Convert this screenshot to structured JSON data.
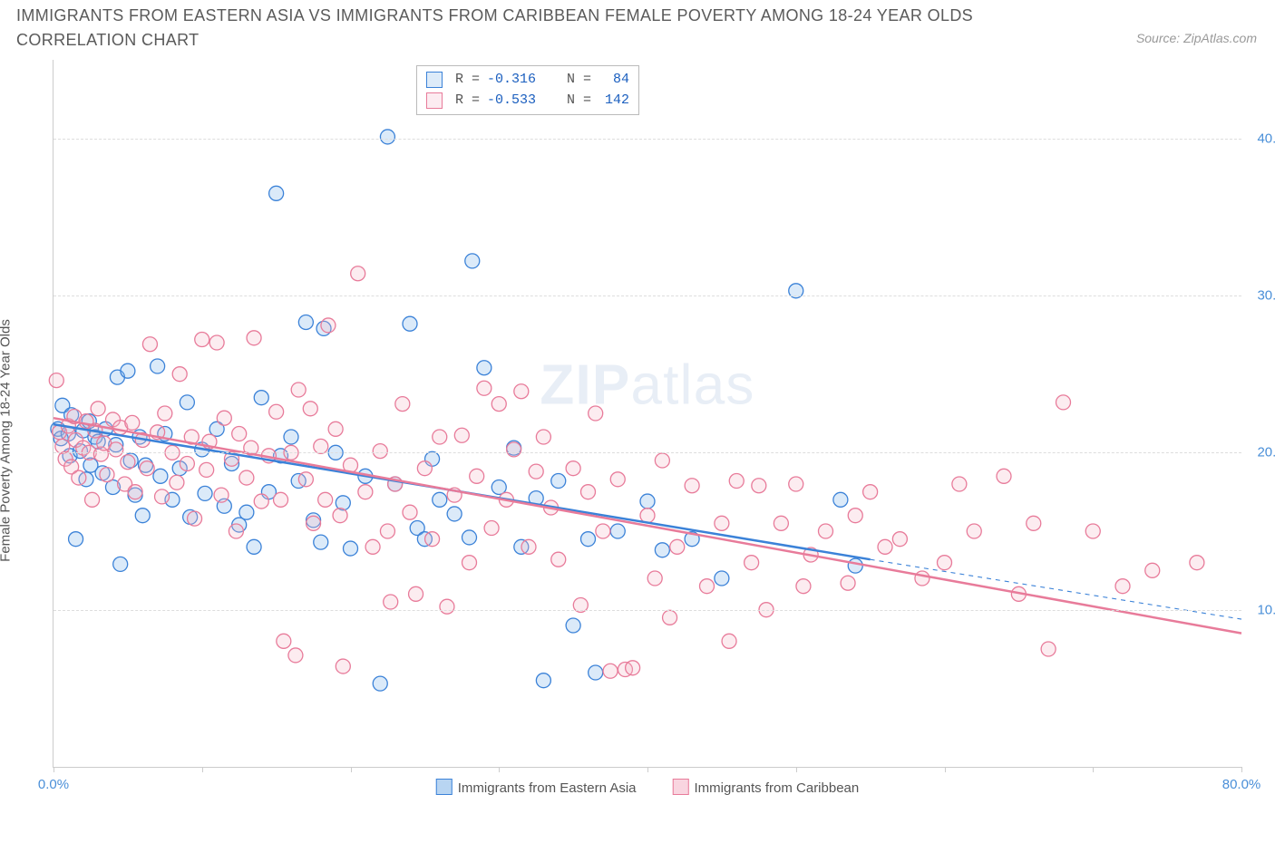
{
  "title": "IMMIGRANTS FROM EASTERN ASIA VS IMMIGRANTS FROM CARIBBEAN FEMALE POVERTY AMONG 18-24 YEAR OLDS CORRELATION CHART",
  "source": "Source: ZipAtlas.com",
  "ylabel": "Female Poverty Among 18-24 Year Olds",
  "watermark_bold": "ZIP",
  "watermark_light": "atlas",
  "chart": {
    "type": "scatter",
    "background_color": "#ffffff",
    "grid_color": "#dddddd",
    "axis_color": "#cccccc",
    "tick_label_color": "#4a8fd8",
    "xlim": [
      0,
      80
    ],
    "ylim": [
      0,
      45
    ],
    "xtick_marks": [
      0,
      10,
      20,
      30,
      40,
      50,
      60,
      70,
      80
    ],
    "xtick_labels": [
      {
        "x": 0,
        "label": "0.0%"
      },
      {
        "x": 80,
        "label": "80.0%"
      }
    ],
    "ytick_labels": [
      {
        "y": 10,
        "label": "10.0%"
      },
      {
        "y": 20,
        "label": "20.0%"
      },
      {
        "y": 30,
        "label": "30.0%"
      },
      {
        "y": 40,
        "label": "40.0%"
      }
    ],
    "marker_radius": 8,
    "marker_stroke_width": 1.3,
    "marker_fill_opacity": 0.28,
    "regression_line_width": 2.5,
    "regression_dash_width": 1.1,
    "series": [
      {
        "name": "Immigrants from Eastern Asia",
        "color_stroke": "#3b82d8",
        "color_fill": "#7fb4e8",
        "R": "-0.316",
        "N": "84",
        "regression": {
          "x1": 0,
          "y1": 21.8,
          "x2": 55,
          "y2": 13.2,
          "dash_x2": 80,
          "dash_y2": 9.4
        },
        "points": [
          [
            0.3,
            21.5
          ],
          [
            0.5,
            20.9
          ],
          [
            0.6,
            23.0
          ],
          [
            1.0,
            21.2
          ],
          [
            1.1,
            19.8
          ],
          [
            1.2,
            22.4
          ],
          [
            1.5,
            14.5
          ],
          [
            1.8,
            20.1
          ],
          [
            2.0,
            21.4
          ],
          [
            2.2,
            18.3
          ],
          [
            2.4,
            22.0
          ],
          [
            2.5,
            19.2
          ],
          [
            2.8,
            21.0
          ],
          [
            3.0,
            20.7
          ],
          [
            3.3,
            18.7
          ],
          [
            3.5,
            21.5
          ],
          [
            4.0,
            17.8
          ],
          [
            4.2,
            20.5
          ],
          [
            4.3,
            24.8
          ],
          [
            4.5,
            12.9
          ],
          [
            5.0,
            25.2
          ],
          [
            5.2,
            19.5
          ],
          [
            5.5,
            17.3
          ],
          [
            5.8,
            21.0
          ],
          [
            6.0,
            16.0
          ],
          [
            6.2,
            19.2
          ],
          [
            7.0,
            25.5
          ],
          [
            7.2,
            18.5
          ],
          [
            7.5,
            21.2
          ],
          [
            8.0,
            17.0
          ],
          [
            8.5,
            19.0
          ],
          [
            9.0,
            23.2
          ],
          [
            9.2,
            15.9
          ],
          [
            10.0,
            20.2
          ],
          [
            10.2,
            17.4
          ],
          [
            11.0,
            21.5
          ],
          [
            11.5,
            16.6
          ],
          [
            12.0,
            19.3
          ],
          [
            12.5,
            15.4
          ],
          [
            13.0,
            16.2
          ],
          [
            13.5,
            14.0
          ],
          [
            14.0,
            23.5
          ],
          [
            14.5,
            17.5
          ],
          [
            15.0,
            36.5
          ],
          [
            15.3,
            19.8
          ],
          [
            16.0,
            21.0
          ],
          [
            16.5,
            18.2
          ],
          [
            17.0,
            28.3
          ],
          [
            17.5,
            15.7
          ],
          [
            18.0,
            14.3
          ],
          [
            18.2,
            27.9
          ],
          [
            19.0,
            20.0
          ],
          [
            19.5,
            16.8
          ],
          [
            20.0,
            13.9
          ],
          [
            21.0,
            18.5
          ],
          [
            22.0,
            5.3
          ],
          [
            22.5,
            40.1
          ],
          [
            23.0,
            18.0
          ],
          [
            24.0,
            28.2
          ],
          [
            24.5,
            15.2
          ],
          [
            25.0,
            14.5
          ],
          [
            25.5,
            19.6
          ],
          [
            26.0,
            17.0
          ],
          [
            27.0,
            16.1
          ],
          [
            28.0,
            14.6
          ],
          [
            28.2,
            32.2
          ],
          [
            29.0,
            25.4
          ],
          [
            30.0,
            17.8
          ],
          [
            31.0,
            20.3
          ],
          [
            31.5,
            14.0
          ],
          [
            32.5,
            17.1
          ],
          [
            33.0,
            5.5
          ],
          [
            34.0,
            18.2
          ],
          [
            35.0,
            9.0
          ],
          [
            36.0,
            14.5
          ],
          [
            36.5,
            6.0
          ],
          [
            38.0,
            15.0
          ],
          [
            40.0,
            16.9
          ],
          [
            41.0,
            13.8
          ],
          [
            43.0,
            14.5
          ],
          [
            45.0,
            12.0
          ],
          [
            50.0,
            30.3
          ],
          [
            53.0,
            17.0
          ],
          [
            54.0,
            12.8
          ]
        ]
      },
      {
        "name": "Immigrants from Caribbean",
        "color_stroke": "#e87b9a",
        "color_fill": "#f5b9c9",
        "R": "-0.533",
        "N": "142",
        "regression": {
          "x1": 0,
          "y1": 22.2,
          "x2": 80,
          "y2": 8.5,
          "dash_x2": 80,
          "dash_y2": 8.5
        },
        "points": [
          [
            0.2,
            24.6
          ],
          [
            0.4,
            21.3
          ],
          [
            0.6,
            20.4
          ],
          [
            0.8,
            19.6
          ],
          [
            1.0,
            21.7
          ],
          [
            1.2,
            19.1
          ],
          [
            1.4,
            22.3
          ],
          [
            1.5,
            20.8
          ],
          [
            1.7,
            18.4
          ],
          [
            2.0,
            20.3
          ],
          [
            2.2,
            22.0
          ],
          [
            2.4,
            20.0
          ],
          [
            2.6,
            17.0
          ],
          [
            2.8,
            21.4
          ],
          [
            3.0,
            22.8
          ],
          [
            3.2,
            19.9
          ],
          [
            3.4,
            20.6
          ],
          [
            3.6,
            18.6
          ],
          [
            4.0,
            22.1
          ],
          [
            4.2,
            20.2
          ],
          [
            4.5,
            21.6
          ],
          [
            4.8,
            18.0
          ],
          [
            5.0,
            19.4
          ],
          [
            5.3,
            21.9
          ],
          [
            5.5,
            17.5
          ],
          [
            6.0,
            20.8
          ],
          [
            6.3,
            19.0
          ],
          [
            6.5,
            26.9
          ],
          [
            7.0,
            21.3
          ],
          [
            7.3,
            17.2
          ],
          [
            7.5,
            22.5
          ],
          [
            8.0,
            20.0
          ],
          [
            8.3,
            18.1
          ],
          [
            8.5,
            25.0
          ],
          [
            9.0,
            19.3
          ],
          [
            9.3,
            21.0
          ],
          [
            9.5,
            15.8
          ],
          [
            10.0,
            27.2
          ],
          [
            10.3,
            18.9
          ],
          [
            10.5,
            20.7
          ],
          [
            11.0,
            27.0
          ],
          [
            11.3,
            17.3
          ],
          [
            11.5,
            22.2
          ],
          [
            12.0,
            19.6
          ],
          [
            12.3,
            15.0
          ],
          [
            12.5,
            21.2
          ],
          [
            13.0,
            18.4
          ],
          [
            13.3,
            20.3
          ],
          [
            13.5,
            27.3
          ],
          [
            14.0,
            16.9
          ],
          [
            14.5,
            19.8
          ],
          [
            15.0,
            22.6
          ],
          [
            15.3,
            17.0
          ],
          [
            15.5,
            8.0
          ],
          [
            16.0,
            20.0
          ],
          [
            16.3,
            7.1
          ],
          [
            16.5,
            24.0
          ],
          [
            17.0,
            18.3
          ],
          [
            17.3,
            22.8
          ],
          [
            17.5,
            15.5
          ],
          [
            18.0,
            20.4
          ],
          [
            18.3,
            17.0
          ],
          [
            18.5,
            28.1
          ],
          [
            19.0,
            21.5
          ],
          [
            19.3,
            16.0
          ],
          [
            19.5,
            6.4
          ],
          [
            20.0,
            19.2
          ],
          [
            20.5,
            31.4
          ],
          [
            21.0,
            17.5
          ],
          [
            21.5,
            14.0
          ],
          [
            22.0,
            20.1
          ],
          [
            22.5,
            15.0
          ],
          [
            22.7,
            10.5
          ],
          [
            23.0,
            18.0
          ],
          [
            23.5,
            23.1
          ],
          [
            24.0,
            16.2
          ],
          [
            24.4,
            11.0
          ],
          [
            25.0,
            19.0
          ],
          [
            25.5,
            14.5
          ],
          [
            26.0,
            21.0
          ],
          [
            26.5,
            10.2
          ],
          [
            27.0,
            17.3
          ],
          [
            27.5,
            21.1
          ],
          [
            28.0,
            13.0
          ],
          [
            28.5,
            18.5
          ],
          [
            29.0,
            24.1
          ],
          [
            29.5,
            15.2
          ],
          [
            30.0,
            23.1
          ],
          [
            30.5,
            17.0
          ],
          [
            31.0,
            20.2
          ],
          [
            31.5,
            23.9
          ],
          [
            32.0,
            14.0
          ],
          [
            32.5,
            18.8
          ],
          [
            33.0,
            21.0
          ],
          [
            33.5,
            16.5
          ],
          [
            34.0,
            13.2
          ],
          [
            35.0,
            19.0
          ],
          [
            35.5,
            10.3
          ],
          [
            36.0,
            17.5
          ],
          [
            36.5,
            22.5
          ],
          [
            37.0,
            15.0
          ],
          [
            37.5,
            6.1
          ],
          [
            38.0,
            18.3
          ],
          [
            38.5,
            6.2
          ],
          [
            39.0,
            6.3
          ],
          [
            40.0,
            16.0
          ],
          [
            40.5,
            12.0
          ],
          [
            41.0,
            19.5
          ],
          [
            41.5,
            9.5
          ],
          [
            42.0,
            14.0
          ],
          [
            43.0,
            17.9
          ],
          [
            44.0,
            11.5
          ],
          [
            45.0,
            15.5
          ],
          [
            45.5,
            8.0
          ],
          [
            46.0,
            18.2
          ],
          [
            47.0,
            13.0
          ],
          [
            47.5,
            17.9
          ],
          [
            48.0,
            10.0
          ],
          [
            49.0,
            15.5
          ],
          [
            50.0,
            18.0
          ],
          [
            50.5,
            11.5
          ],
          [
            51.0,
            13.5
          ],
          [
            52.0,
            15.0
          ],
          [
            53.5,
            11.7
          ],
          [
            54.0,
            16.0
          ],
          [
            55.0,
            17.5
          ],
          [
            56.0,
            14.0
          ],
          [
            57.0,
            14.5
          ],
          [
            58.5,
            12.0
          ],
          [
            60.0,
            13.0
          ],
          [
            61.0,
            18.0
          ],
          [
            62.0,
            15.0
          ],
          [
            64.0,
            18.5
          ],
          [
            65.0,
            11.0
          ],
          [
            66.0,
            15.5
          ],
          [
            67.0,
            7.5
          ],
          [
            68.0,
            23.2
          ],
          [
            70.0,
            15.0
          ],
          [
            72.0,
            11.5
          ],
          [
            74.0,
            12.5
          ],
          [
            77.0,
            13.0
          ]
        ]
      }
    ]
  },
  "legend_bottom": [
    {
      "label": "Immigrants from Eastern Asia",
      "stroke": "#3b82d8",
      "fill": "#b8d5f2"
    },
    {
      "label": "Immigrants from Caribbean",
      "stroke": "#e87b9a",
      "fill": "#f9d5e0"
    }
  ],
  "legend_top_labels": {
    "R": "R =",
    "N": "N ="
  }
}
